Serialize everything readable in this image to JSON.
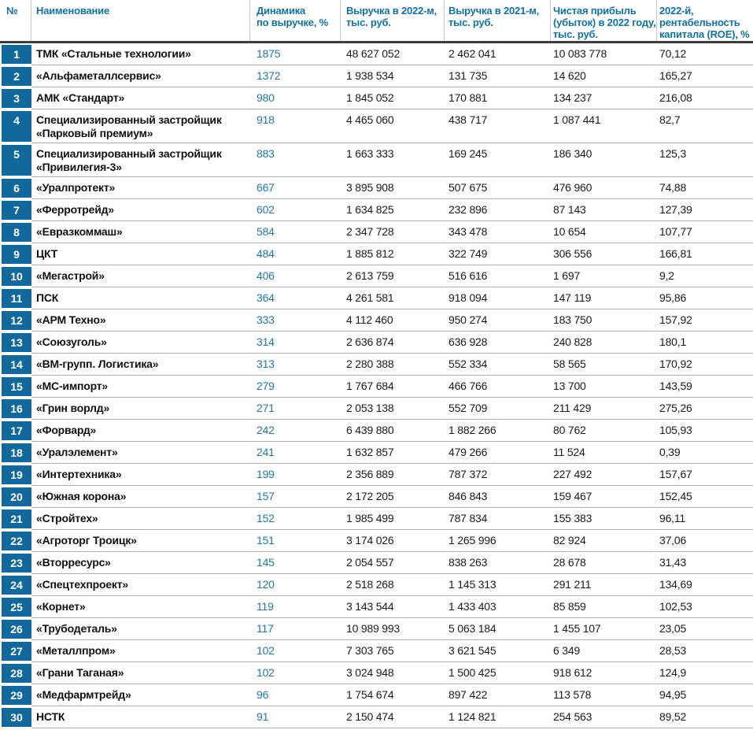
{
  "colors": {
    "rank_bg": "#11689b",
    "header_text": "#1171a3",
    "dynamics_text": "#2176a6",
    "row_separator": "#adadad",
    "header_rule": "#3d3d3d"
  },
  "table": {
    "headers": [
      "№",
      "Наименование",
      "Динамика\nпо выручке, %",
      "Выручка в 2022-м,\nтыс. руб.",
      "Выручка в 2021-м,\nтыс. руб.",
      "Чистая прибыль\n(убыток) в 2022 году,\nтыс. руб.",
      "2022-й, рентабельность\nкапитала (ROE), %"
    ],
    "rows": [
      [
        "1",
        "ТМК «Стальные технологии»",
        "1875",
        "48 627 052",
        "2 462 041",
        "10 083 778",
        "70,12"
      ],
      [
        "2",
        "«Альфаметаллсервис»",
        "1372",
        "1 938 534",
        "131 735",
        "14 620",
        "165,27"
      ],
      [
        "3",
        "АМК «Стандарт»",
        "980",
        "1 845 052",
        "170 881",
        "134 237",
        "216,08"
      ],
      [
        "4",
        "Специализированный застройщик\n«Парковый премиум»",
        "918",
        "4 465 060",
        "438 717",
        "1 087 441",
        "82,7"
      ],
      [
        "5",
        "Специализированный застройщик\n«Привилегия-3»",
        "883",
        "1 663 333",
        "169 245",
        "186 340",
        "125,3"
      ],
      [
        "6",
        "«Уралпротект»",
        "667",
        "3 895 908",
        "507 675",
        "476 960",
        "74,88"
      ],
      [
        "7",
        "«Ферротрейд»",
        "602",
        "1 634 825",
        "232 896",
        "87 143",
        "127,39"
      ],
      [
        "8",
        "«Евразкоммаш»",
        "584",
        "2 347 728",
        "343 478",
        "10 654",
        "107,77"
      ],
      [
        "9",
        "ЦКТ",
        "484",
        "1 885 812",
        "322 749",
        "306 556",
        "166,81"
      ],
      [
        "10",
        "«Мегастрой»",
        "406",
        "2 613 759",
        "516 616",
        "1 697",
        "9,2"
      ],
      [
        "11",
        "ПСК",
        "364",
        "4 261 581",
        "918 094",
        "147 119",
        "95,86"
      ],
      [
        "12",
        "«АРМ Техно»",
        "333",
        "4 112 460",
        "950 274",
        "183 750",
        "157,92"
      ],
      [
        "13",
        "«Союзуголь»",
        "314",
        "2 636 874",
        "636 928",
        "240 828",
        "180,1"
      ],
      [
        "14",
        "«ВМ-групп. Логистика»",
        "313",
        "2 280 388",
        "552 334",
        "58 565",
        "170,92"
      ],
      [
        "15",
        "«МС-импорт»",
        "279",
        "1 767 684",
        "466 766",
        "13 700",
        "143,59"
      ],
      [
        "16",
        "«Грин ворлд»",
        "271",
        "2 053 138",
        "552 709",
        "211 429",
        "275,26"
      ],
      [
        "17",
        "«Форвард»",
        "242",
        "6 439 880",
        "1 882 266",
        "80 762",
        "105,93"
      ],
      [
        "18",
        "«Уралэлемент»",
        "241",
        "1 632 857",
        "479 266",
        "11 524",
        "0,39"
      ],
      [
        "19",
        "«Интертехника»",
        "199",
        "2 356 889",
        "787 372",
        "227 492",
        "157,67"
      ],
      [
        "20",
        "«Южная корона»",
        "157",
        "2 172 205",
        "846 843",
        "159 467",
        "152,45"
      ],
      [
        "21",
        "«Стройтех»",
        "152",
        "1 985 499",
        "787 834",
        "155 383",
        "96,11"
      ],
      [
        "22",
        "«Агроторг Троицк»",
        "151",
        "3 174 026",
        "1 265 996",
        "82 924",
        "37,06"
      ],
      [
        "23",
        "«Вторресурс»",
        "145",
        "2 054 557",
        "838 263",
        "28 678",
        "31,43"
      ],
      [
        "24",
        "«Спецтехпроект»",
        "120",
        "2 518 268",
        "1 145 313",
        "291 211",
        "134,69"
      ],
      [
        "25",
        "«Корнет»",
        "119",
        "3 143 544",
        "1 433 403",
        "85 859",
        "102,53"
      ],
      [
        "26",
        "«Трубодеталь»",
        "117",
        "10 989 993",
        "5 063 184",
        "1 455 107",
        "23,05"
      ],
      [
        "27",
        "«Металлпром»",
        "102",
        "7 303 765",
        "3 621 545",
        "6 349",
        "28,53"
      ],
      [
        "28",
        "«Грани Таганая»",
        "102",
        "3 024 948",
        "1 500 425",
        "918 612",
        "124,9"
      ],
      [
        "29",
        "«Медфармтрейд»",
        "96",
        "1 754 674",
        "897 422",
        "113 578",
        "94,95"
      ],
      [
        "30",
        "НСТК",
        "91",
        "2 150 474",
        "1 124 821",
        "254 563",
        "89,52"
      ]
    ]
  }
}
